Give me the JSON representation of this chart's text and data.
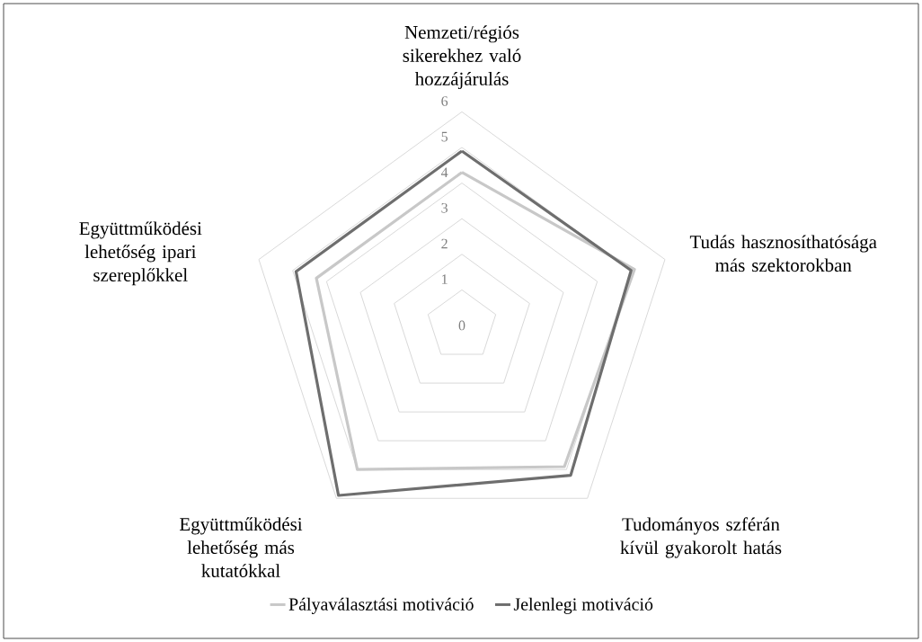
{
  "chart_data": {
    "type": "radar",
    "categories": [
      "Nemzeti/régiós sikerekhez való hozzájárulás",
      "Tudás hasznosíthatósága más szektorokban",
      "Tudományos szférán kívül gyakorolt hatás",
      "Együttműködési lehetőség más kutatókkal",
      "Együttműködési lehetőség ipari szereplőkkel"
    ],
    "series": [
      {
        "name": "Pályaválasztási motiváció",
        "color": "#c8c8c8",
        "values": [
          4.3,
          5.1,
          4.9,
          5.0,
          4.3
        ]
      },
      {
        "name": "Jelenlegi motiváció",
        "color": "#6e6e6e",
        "values": [
          4.9,
          5.0,
          5.2,
          5.9,
          4.9
        ]
      }
    ],
    "ylim": [
      0,
      6
    ],
    "yticks": [
      0,
      1,
      2,
      3,
      4,
      5,
      6
    ],
    "grid": true,
    "legend": "bottom"
  }
}
